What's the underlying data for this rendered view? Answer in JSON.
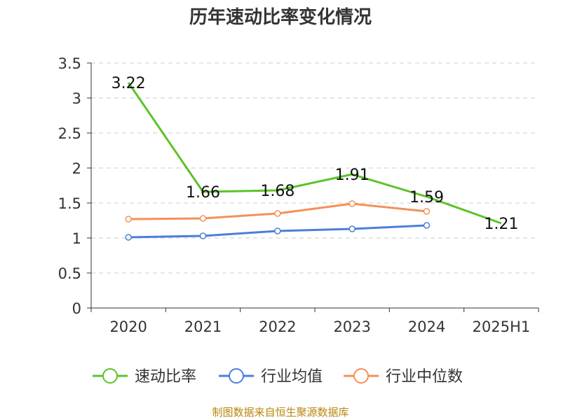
{
  "chart_data": {
    "type": "line",
    "title": "历年速动比率变化情况",
    "categories": [
      "2020",
      "2021",
      "2022",
      "2023",
      "2024",
      "2025H1"
    ],
    "ylim": [
      0,
      3.5
    ],
    "yticks": [
      "0",
      "0.5",
      "1",
      "1.5",
      "2",
      "2.5",
      "3",
      "3.5"
    ],
    "grid": true,
    "legend_position": "bottom",
    "series": [
      {
        "name": "速动比率",
        "color": "#5cc32a",
        "values": [
          3.22,
          1.66,
          1.68,
          1.91,
          1.59,
          1.21
        ],
        "labels": [
          "3.22",
          "1.66",
          "1.68",
          "1.91",
          "1.59",
          "1.21"
        ],
        "markers": false
      },
      {
        "name": "行业均值",
        "color": "#4a7fdb",
        "values": [
          1.01,
          1.03,
          1.1,
          1.13,
          1.18,
          null
        ],
        "markers": true
      },
      {
        "name": "行业中位数",
        "color": "#f59058",
        "values": [
          1.27,
          1.28,
          1.35,
          1.49,
          1.38,
          null
        ],
        "markers": true
      }
    ],
    "source": "制图数据来自恒生聚源数据库"
  }
}
